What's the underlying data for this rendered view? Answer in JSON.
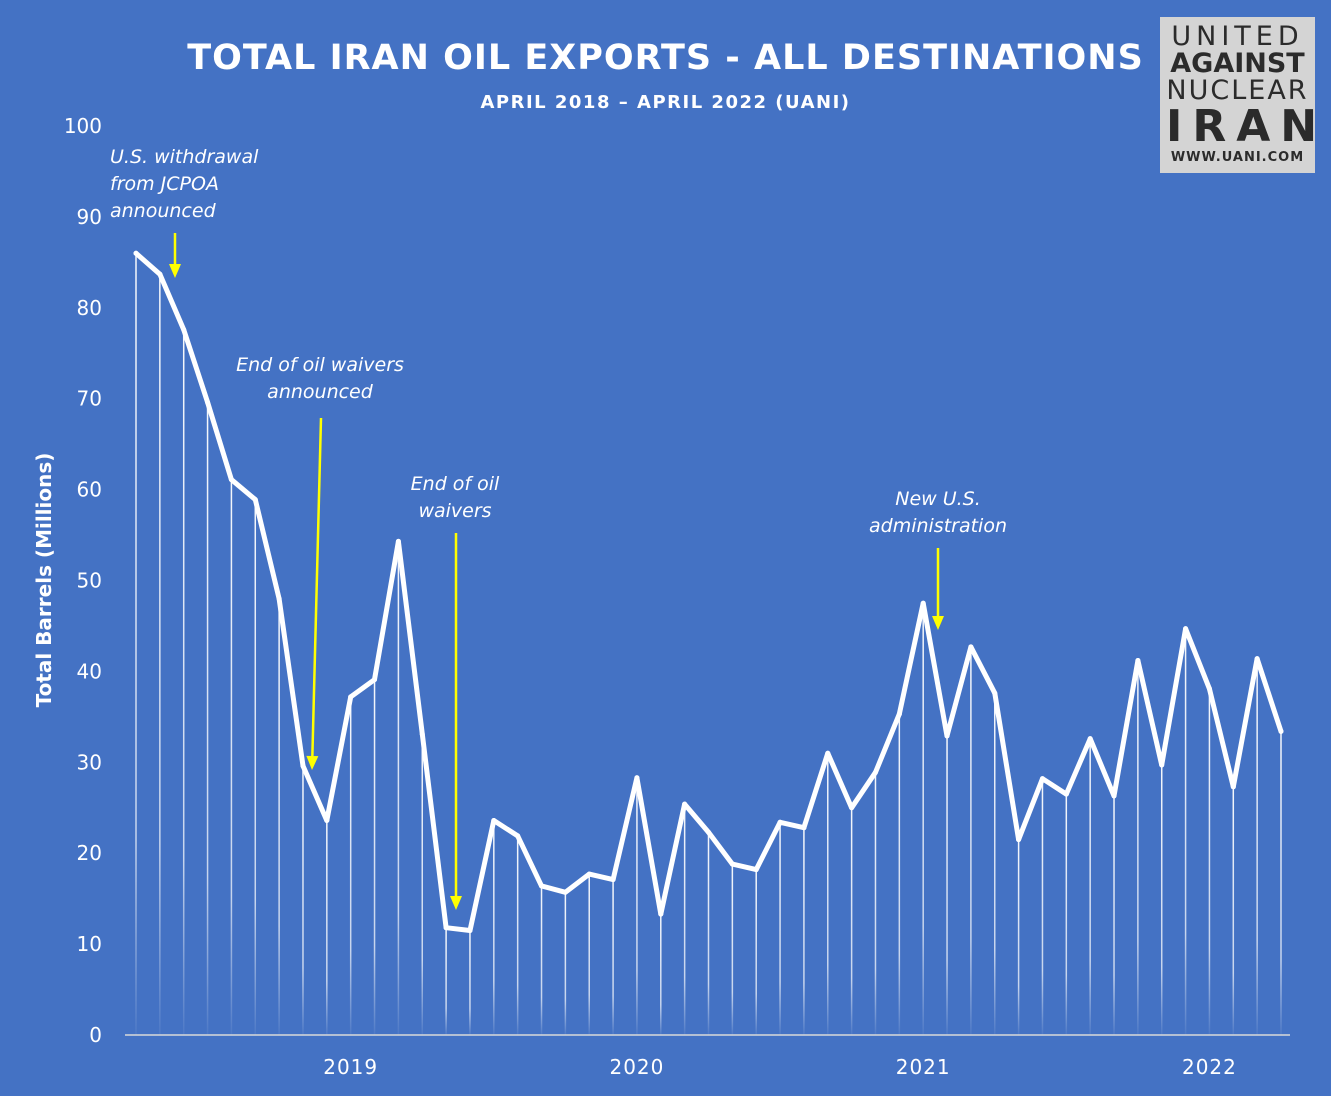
{
  "chart_data": {
    "type": "line",
    "title": "TOTAL IRAN OIL EXPORTS - ALL DESTINATIONS",
    "subtitle": "APRIL 2018 – APRIL 2022 (UANI)",
    "ylabel": "Total Barrels (Millions)",
    "xlabel": "",
    "ylim": [
      0,
      100
    ],
    "yticks": [
      "0",
      "10",
      "20",
      "30",
      "40",
      "50",
      "60",
      "70",
      "80",
      "90",
      "100"
    ],
    "x_start": "2018-04",
    "x_end": "2022-04",
    "xticks": [
      "2019",
      "2020",
      "2021",
      "2022"
    ],
    "values": [
      86,
      83.7,
      77.6,
      69.6,
      61.1,
      58.9,
      48,
      29.6,
      23.6,
      37.2,
      39.1,
      54.3,
      33.1,
      11.8,
      11.5,
      23.6,
      21.9,
      16.4,
      15.7,
      17.7,
      17.1,
      28.3,
      13.3,
      25.4,
      22.3,
      18.8,
      18.2,
      23.4,
      22.8,
      31,
      25,
      28.9,
      35.3,
      47.5,
      32.9,
      42.7,
      37.6,
      21.5,
      28.2,
      26.5,
      32.6,
      26.3,
      41.2,
      29.7,
      44.7,
      38.1,
      27.3,
      41.4,
      33.4
    ],
    "grid": false,
    "legend": "none",
    "annotations": [
      {
        "lines": [
          "U.S. withdrawal",
          "from JCPOA",
          "announced"
        ],
        "month": "2018-05"
      },
      {
        "lines": [
          "End of oil waivers",
          "announced"
        ],
        "month": "2018-11"
      },
      {
        "lines": [
          "End of oil",
          "waivers"
        ],
        "month": "2019-05"
      },
      {
        "lines": [
          "New U.S.",
          "administration"
        ],
        "month": "2021-01"
      }
    ]
  },
  "logo": {
    "line1": "UNITED",
    "line2": "AGAINST",
    "line3": "NUCLEAR",
    "line4": "IRAN",
    "line5": "WWW.UANI.COM"
  },
  "colors": {
    "background": "#4472c4",
    "line": "#ffffff",
    "arrow": "#ffff00",
    "logo_bg": "#d4d4d4"
  }
}
